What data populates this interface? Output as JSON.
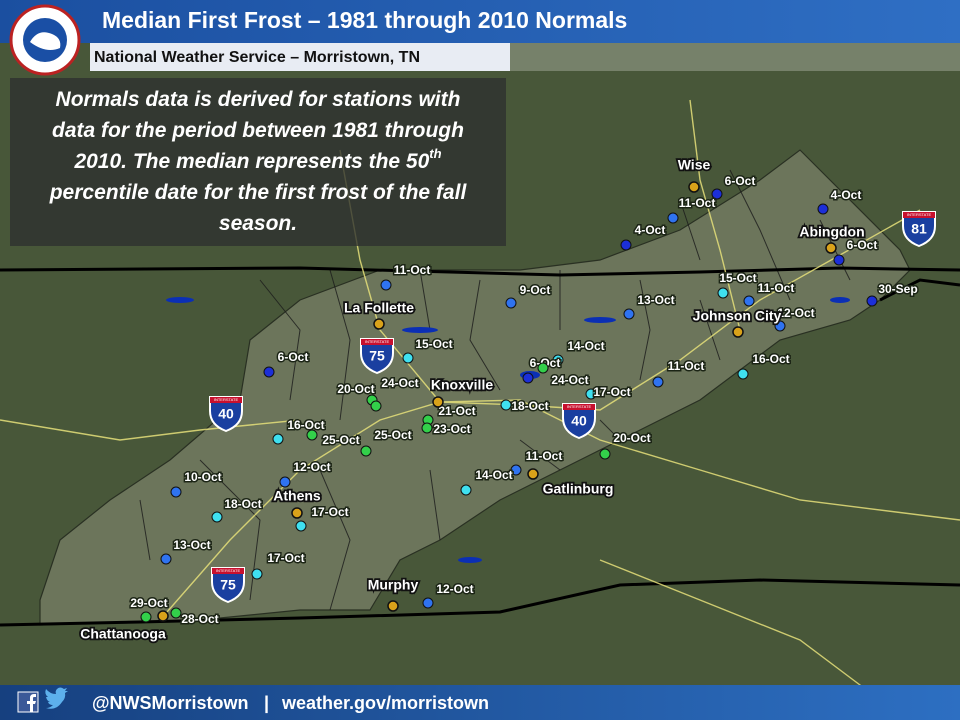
{
  "header": {
    "title": "Median First Frost – 1981 through 2010 Normals",
    "subtitle": "National Weather Service – Morristown, TN"
  },
  "description": {
    "lines": [
      "Normals data is derived for stations with",
      "data for the period between 1981 through",
      "2010. The median represents the 50",
      "percentile date for the first frost of the fall",
      "season."
    ],
    "superscript": "th"
  },
  "stations": [
    {
      "label": "6-Oct",
      "color": "#1c2fd8"
    },
    {
      "label": "11-Oct",
      "color": "#2f73f0"
    },
    {
      "label": "4-Oct",
      "color": "#1c2fd8"
    },
    {
      "label": "4-Oct",
      "color": "#1c2fd8"
    },
    {
      "label": "6-Oct",
      "color": "#1c2fd8"
    },
    {
      "label": "30-Sep",
      "color": "#1c2fd8"
    },
    {
      "label": "15-Oct",
      "color": "#3fe0f0"
    },
    {
      "label": "11-Oct",
      "color": "#2f73f0"
    },
    {
      "label": "12-Oct",
      "color": "#2f73f0"
    },
    {
      "label": "13-Oct",
      "color": "#2f73f0"
    },
    {
      "label": "9-Oct",
      "color": "#2f73f0"
    },
    {
      "label": "11-Oct",
      "color": "#2f73f0"
    },
    {
      "label": "15-Oct",
      "color": "#3fe0f0"
    },
    {
      "label": "14-Oct",
      "color": "#3fe0f0"
    },
    {
      "label": "6-Oct",
      "color": "#1c2fd8"
    },
    {
      "label": "24-Oct",
      "color": "#33d04a"
    },
    {
      "label": "17-Oct",
      "color": "#3fe0f0"
    },
    {
      "label": "11-Oct",
      "color": "#2f73f0"
    },
    {
      "label": "16-Oct",
      "color": "#3fe0f0"
    },
    {
      "label": "6-Oct",
      "color": "#1c2fd8"
    },
    {
      "label": "20-Oct",
      "color": "#33d04a"
    },
    {
      "label": "24-Oct",
      "color": "#33d04a"
    },
    {
      "label": "21-Oct",
      "color": "#33d04a"
    },
    {
      "label": "23-Oct",
      "color": "#33d04a"
    },
    {
      "label": "18-Oct",
      "color": "#3fe0f0"
    },
    {
      "label": "16-Oct",
      "color": "#3fe0f0"
    },
    {
      "label": "25-Oct",
      "color": "#33d04a"
    },
    {
      "label": "25-Oct",
      "color": "#33d04a"
    },
    {
      "label": "20-Oct",
      "color": "#33d04a"
    },
    {
      "label": "11-Oct",
      "color": "#2f73f0"
    },
    {
      "label": "14-Oct",
      "color": "#3fe0f0"
    },
    {
      "label": "12-Oct",
      "color": "#2f73f0"
    },
    {
      "label": "10-Oct",
      "color": "#2f73f0"
    },
    {
      "label": "18-Oct",
      "color": "#3fe0f0"
    },
    {
      "label": "17-Oct",
      "color": "#3fe0f0"
    },
    {
      "label": "13-Oct",
      "color": "#2f73f0"
    },
    {
      "label": "17-Oct",
      "color": "#3fe0f0"
    },
    {
      "label": "29-Oct",
      "color": "#33d04a"
    },
    {
      "label": "28-Oct",
      "color": "#33d04a"
    },
    {
      "label": "12-Oct",
      "color": "#2f73f0"
    }
  ],
  "cities": [
    {
      "label": "Wise"
    },
    {
      "label": "Abingdon"
    },
    {
      "label": "La Follette"
    },
    {
      "label": "Johnson City"
    },
    {
      "label": "Knoxville"
    },
    {
      "label": "Gatlinburg"
    },
    {
      "label": "Athens"
    },
    {
      "label": "Murphy"
    },
    {
      "label": "Chattanooga"
    }
  ],
  "interstates": {
    "caption": "INTERSTATE",
    "shields": [
      {
        "label": "40"
      },
      {
        "label": "75"
      },
      {
        "label": "40"
      },
      {
        "label": "75"
      },
      {
        "label": "81"
      }
    ]
  },
  "footer": {
    "handle": "@NWSMorristown",
    "separator": "|",
    "website": "weather.gov/morristown"
  }
}
